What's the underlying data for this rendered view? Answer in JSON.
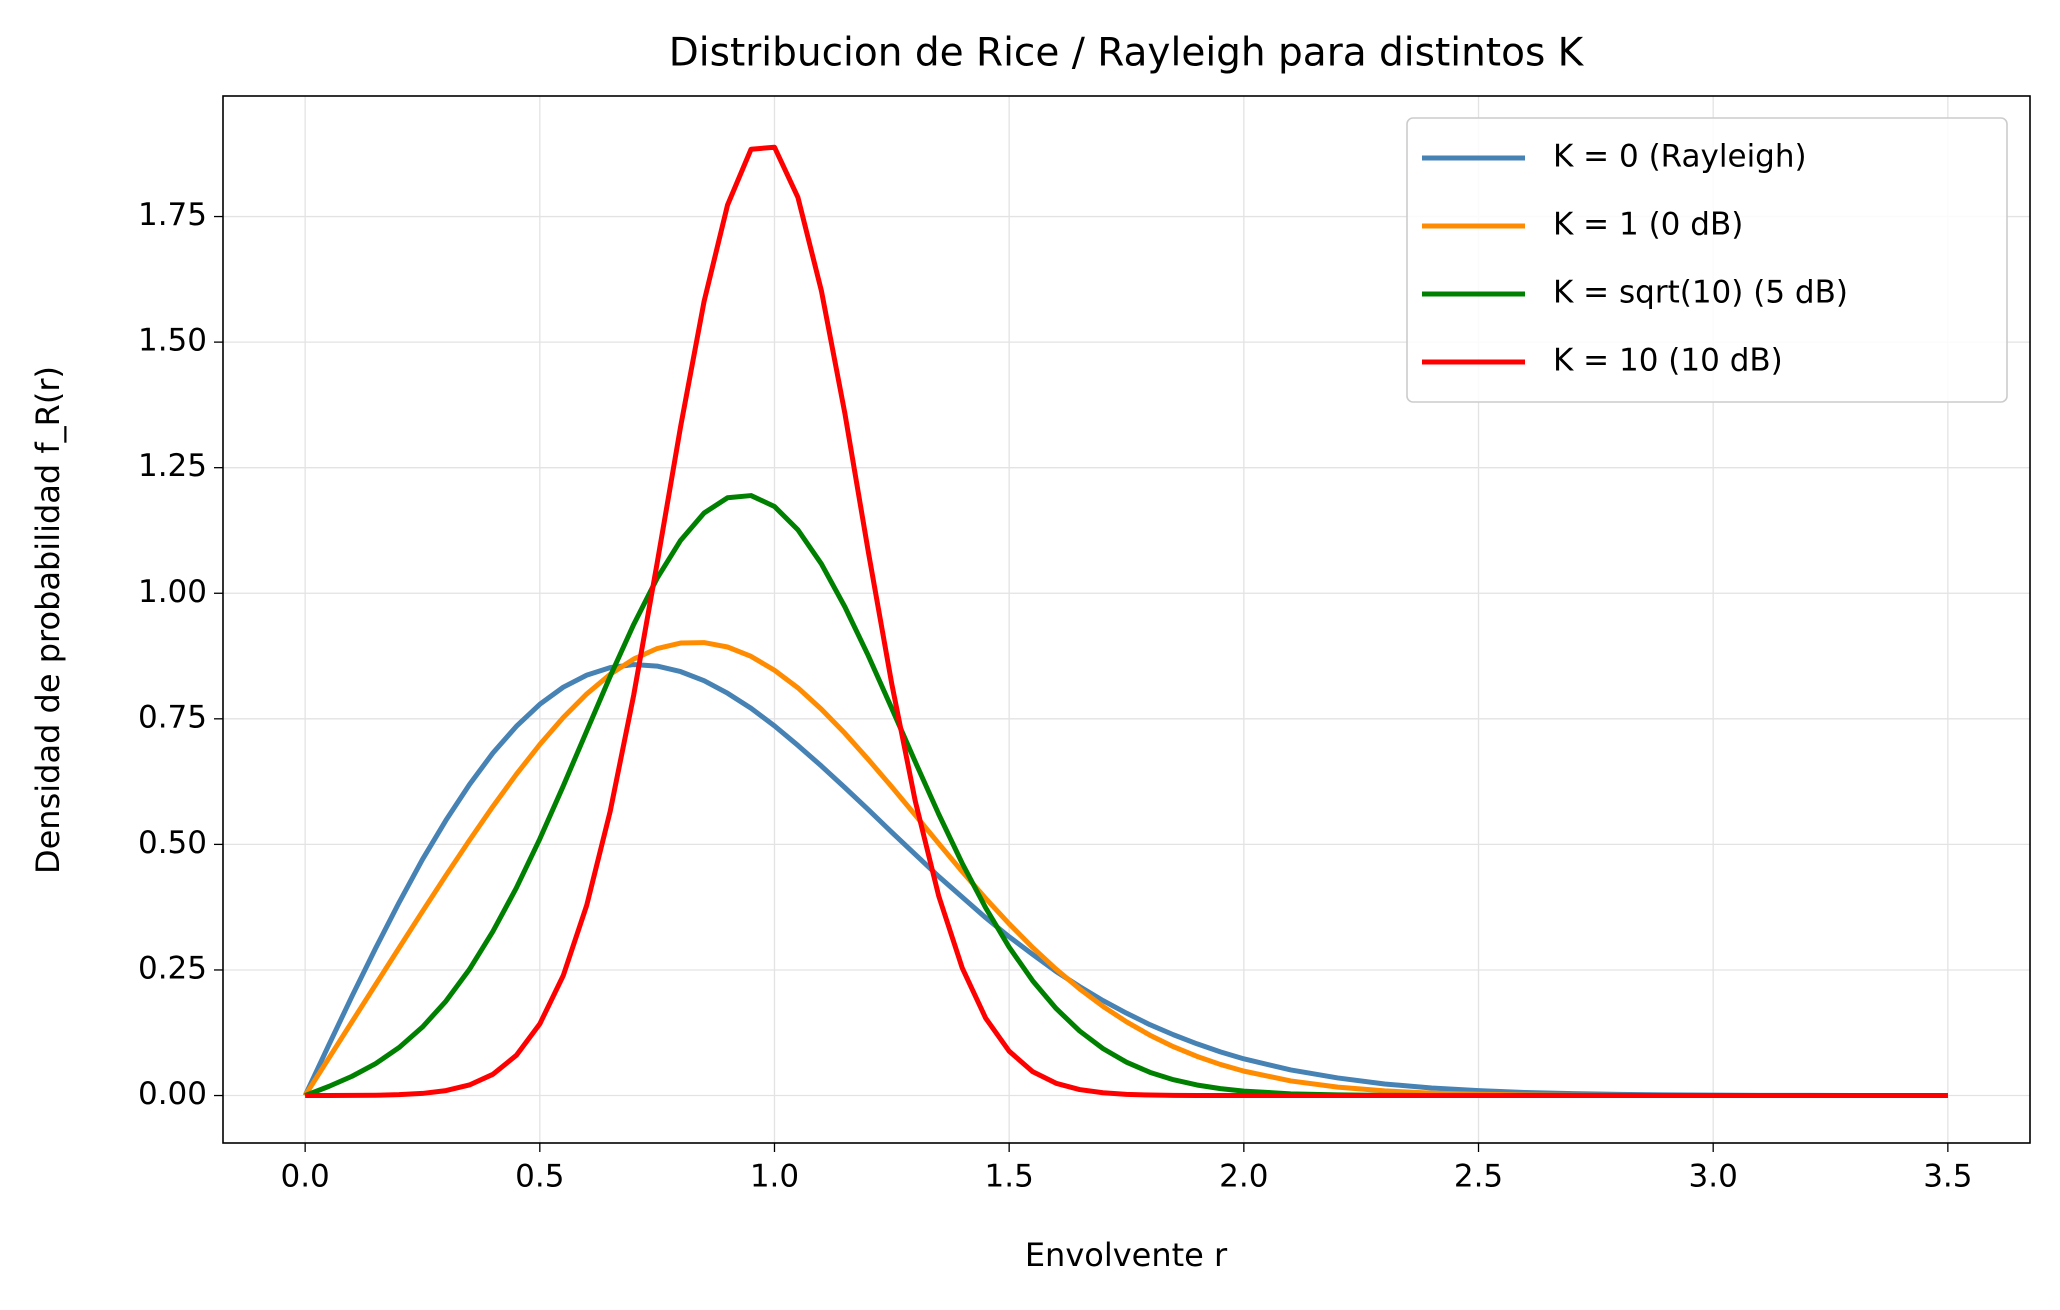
{
  "chart_data": {
    "type": "line",
    "title": "Distribucion de Rice / Rayleigh para distintos K",
    "x_label": "Envolvente r",
    "y_label": "Densidad de probabilidad f_R(r)",
    "x": [
      0,
      0.05,
      0.1,
      0.15,
      0.2,
      0.25,
      0.3,
      0.35,
      0.4,
      0.45,
      0.5,
      0.55,
      0.6,
      0.65,
      0.7,
      0.75,
      0.8,
      0.85,
      0.9,
      0.95,
      1.0,
      1.05,
      1.1,
      1.15,
      1.2,
      1.25,
      1.3,
      1.35,
      1.4,
      1.45,
      1.5,
      1.55,
      1.6,
      1.65,
      1.7,
      1.75,
      1.8,
      1.85,
      1.9,
      1.95,
      2.0,
      2.1,
      2.2,
      2.3,
      2.4,
      2.5,
      2.6,
      2.7,
      2.8,
      2.9,
      3.0,
      3.1,
      3.2,
      3.3,
      3.4,
      3.5
    ],
    "series": [
      {
        "name": "K = 0 (Rayleigh)",
        "color": "#4682b4",
        "values": [
          0,
          0.0998,
          0.198,
          0.293,
          0.384,
          0.47,
          0.548,
          0.619,
          0.682,
          0.735,
          0.779,
          0.813,
          0.837,
          0.852,
          0.858,
          0.855,
          0.844,
          0.826,
          0.801,
          0.771,
          0.736,
          0.697,
          0.656,
          0.613,
          0.569,
          0.524,
          0.48,
          0.436,
          0.395,
          0.354,
          0.316,
          0.281,
          0.247,
          0.217,
          0.189,
          0.164,
          0.141,
          0.121,
          0.103,
          0.087,
          0.073,
          0.051,
          0.035,
          0.023,
          0.015,
          0.0097,
          0.006,
          0.0037,
          0.0022,
          0.0013,
          0.0007,
          0.0004,
          0.0002,
          0.0001,
          0.0001,
          0
        ]
      },
      {
        "name": "K = 1 (0 dB)",
        "color": "#ff8c00",
        "values": [
          0,
          0.0736,
          0.1471,
          0.2206,
          0.2938,
          0.3665,
          0.4382,
          0.5081,
          0.5755,
          0.6395,
          0.6989,
          0.7526,
          0.7996,
          0.8387,
          0.869,
          0.89,
          0.9009,
          0.9018,
          0.893,
          0.8744,
          0.8467,
          0.8117,
          0.769,
          0.7212,
          0.6689,
          0.6144,
          0.5582,
          0.5016,
          0.4458,
          0.3925,
          0.3419,
          0.2948,
          0.2515,
          0.2124,
          0.1774,
          0.1468,
          0.1201,
          0.0972,
          0.078,
          0.0619,
          0.0486,
          0.0291,
          0.0167,
          0.0092,
          0.0049,
          0.0025,
          0.0012,
          0.0006,
          0.0003,
          0.0001,
          0,
          0,
          0,
          0,
          0,
          0
        ]
      },
      {
        "name": "K = sqrt(10) (5 dB)",
        "color": "#008000",
        "values": [
          0,
          0.018,
          0.0384,
          0.0635,
          0.0954,
          0.1364,
          0.1879,
          0.2511,
          0.3266,
          0.4133,
          0.5109,
          0.6164,
          0.7259,
          0.8348,
          0.9379,
          1.03,
          1.1054,
          1.1598,
          1.1901,
          1.1945,
          1.1728,
          1.1262,
          1.0583,
          0.9729,
          0.8754,
          0.7707,
          0.6642,
          0.56,
          0.4622,
          0.3736,
          0.2954,
          0.2286,
          0.1733,
          0.1286,
          0.0934,
          0.0664,
          0.0462,
          0.0315,
          0.021,
          0.0137,
          0.0088,
          0.0034,
          0.0012,
          0.0004,
          0.0001,
          0,
          0,
          0,
          0,
          0,
          0,
          0,
          0,
          0,
          0,
          0
        ]
      },
      {
        "name": "K = 10 (10 dB)",
        "color": "#ff0000",
        "values": [
          0,
          0.0001,
          0.0002,
          0.0006,
          0.0017,
          0.0042,
          0.0098,
          0.021,
          0.0423,
          0.08,
          0.1426,
          0.239,
          0.379,
          0.566,
          0.797,
          1.06,
          1.332,
          1.581,
          1.773,
          1.884,
          1.888,
          1.788,
          1.602,
          1.358,
          1.082,
          0.819,
          0.586,
          0.397,
          0.254,
          0.154,
          0.0883,
          0.0477,
          0.0244,
          0.0119,
          0.0055,
          0.0024,
          0.001,
          0.0004,
          0.0001,
          0,
          0,
          0,
          0,
          0,
          0,
          0,
          0,
          0,
          0,
          0,
          0,
          0,
          0,
          0,
          0,
          0
        ]
      }
    ],
    "xlim": [
      -0.175,
      3.675
    ],
    "ylim": [
      -0.0945,
      1.99
    ],
    "xticks": [
      {
        "value": 0,
        "label": "0.0"
      },
      0.5,
      {
        "value": 1,
        "label": "1.0"
      },
      1.5,
      {
        "value": 2,
        "label": "2.0"
      },
      2.5,
      {
        "value": 3,
        "label": "3.0"
      },
      3.5
    ],
    "yticks": [
      {
        "value": 0,
        "label": "0.00"
      },
      0.25,
      {
        "value": 0.5,
        "label": "0.50"
      },
      0.75,
      {
        "value": 1,
        "label": "1.00"
      },
      1.25,
      {
        "value": 1.5,
        "label": "1.50"
      },
      1.75
    ],
    "grid": true,
    "legend": "upper-right"
  }
}
